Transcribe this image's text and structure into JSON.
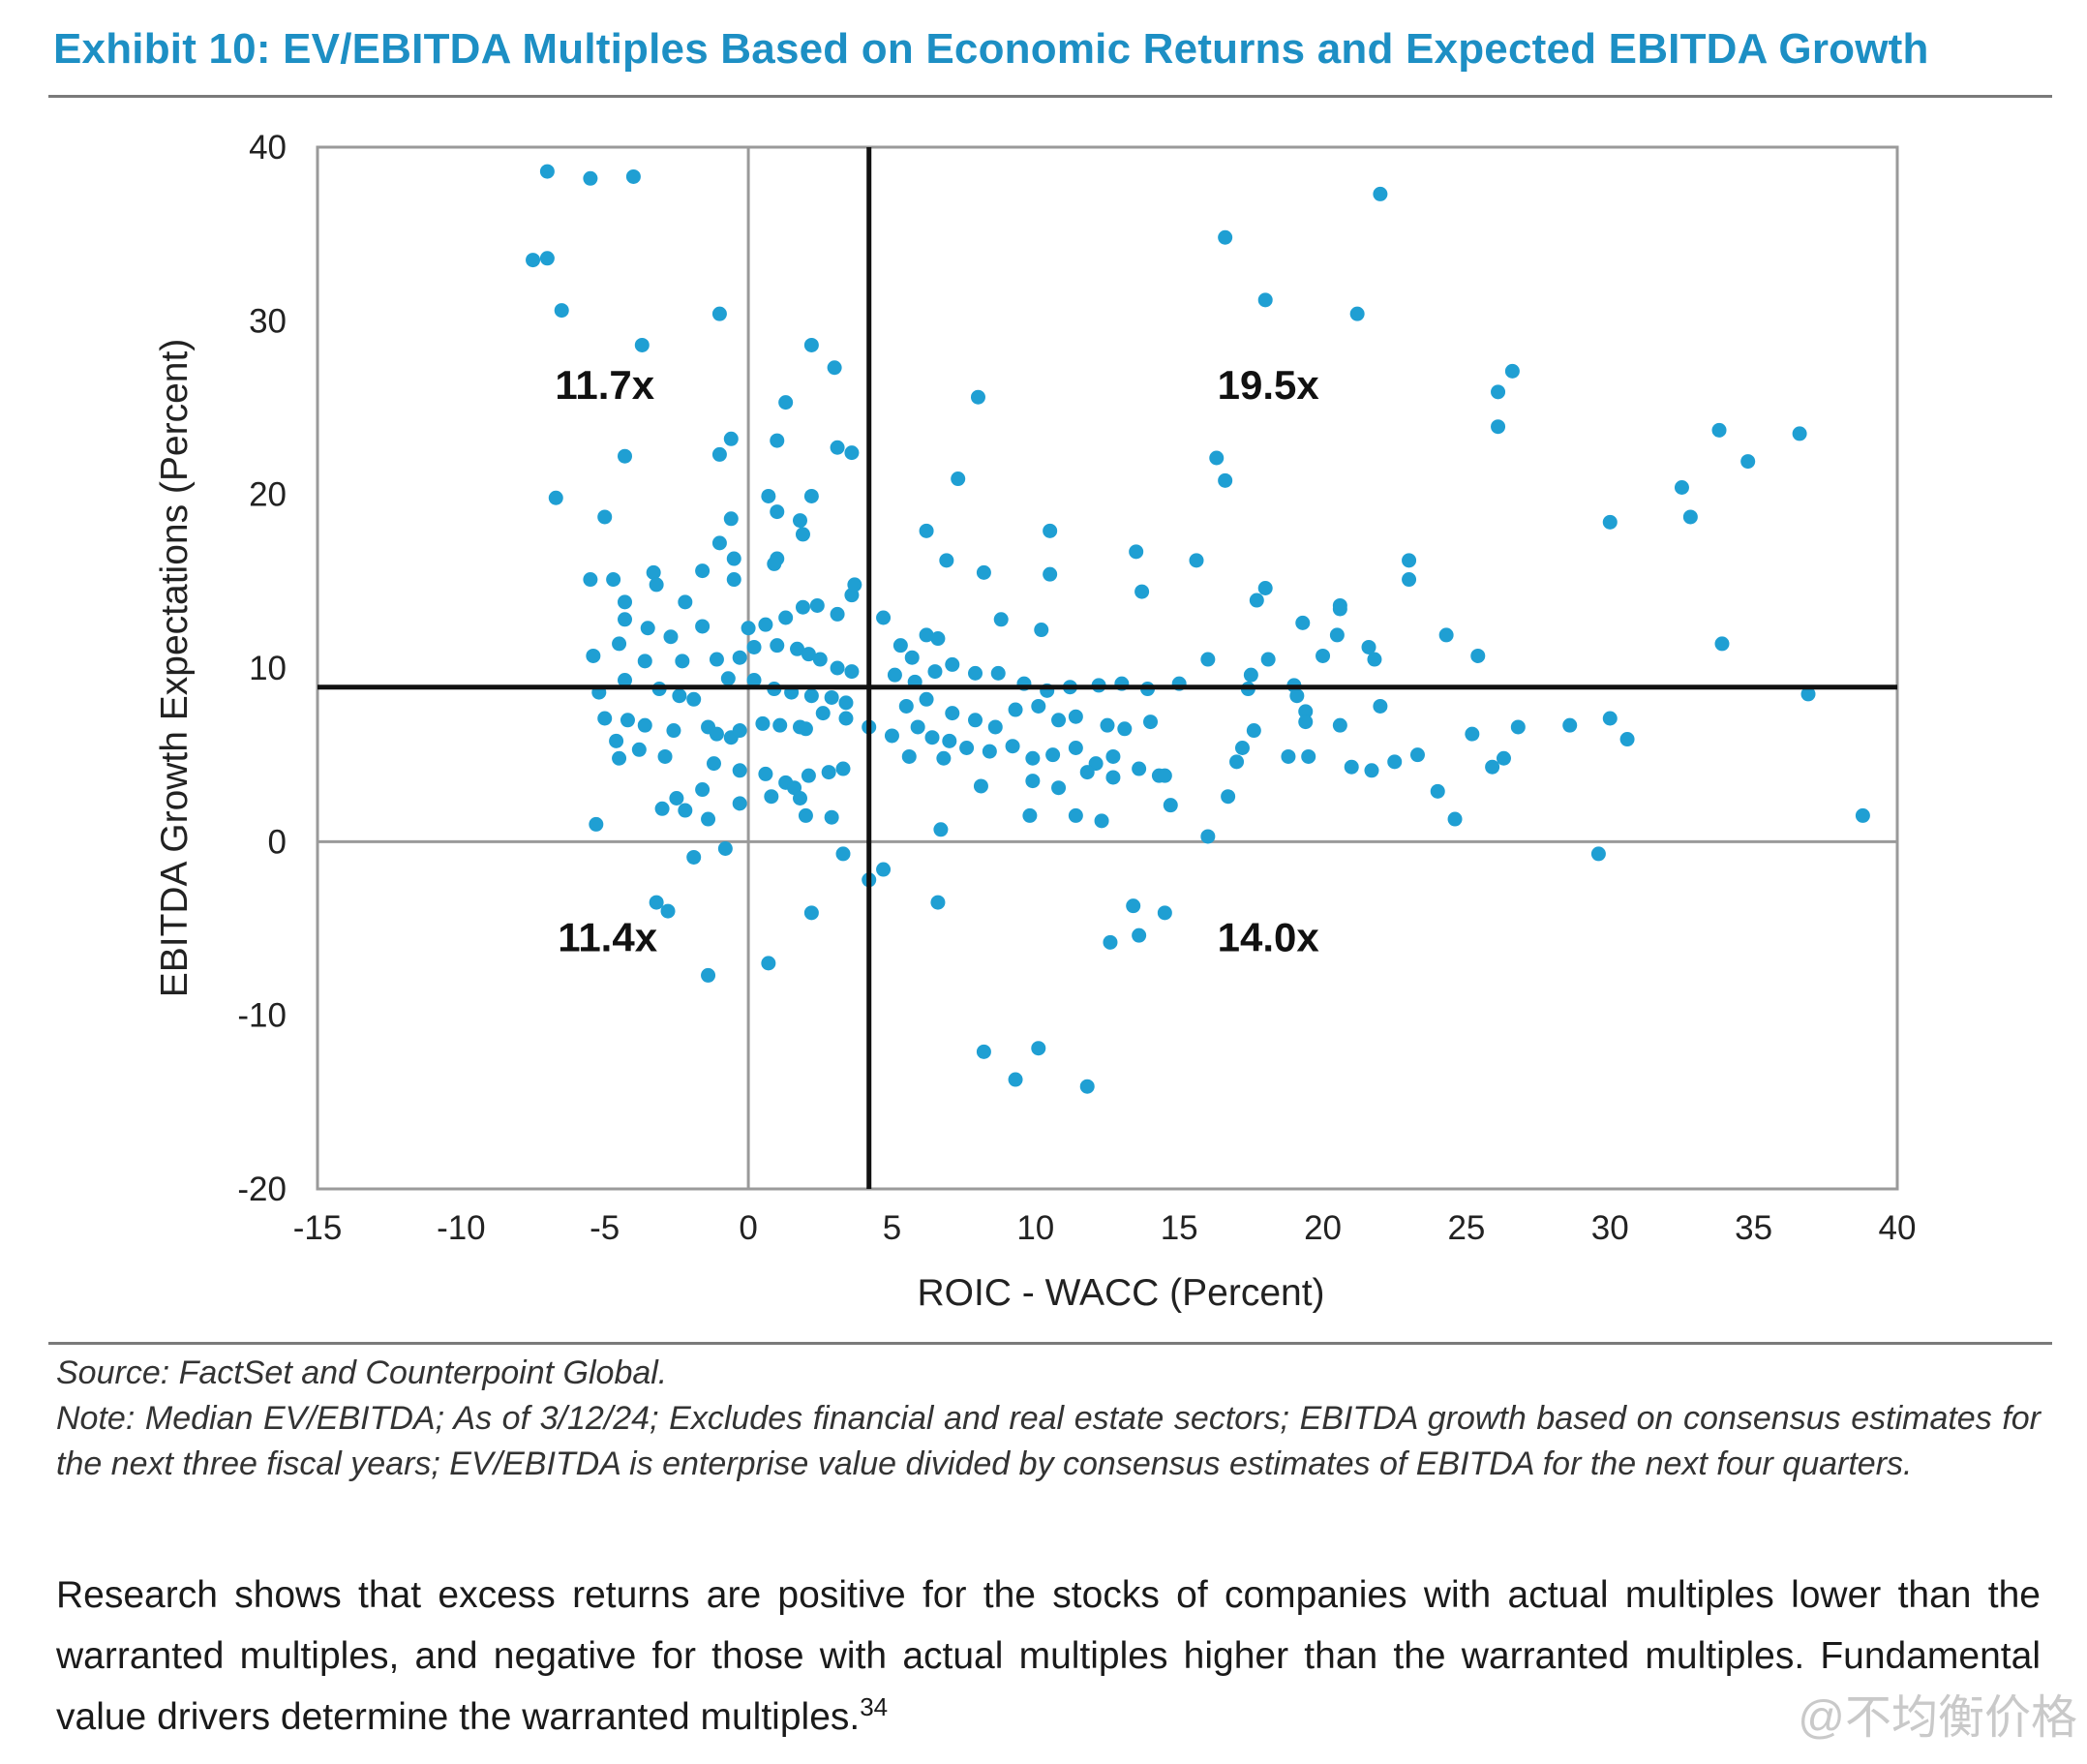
{
  "title": "Exhibit 10: EV/EBITDA Multiples Based on Economic Returns and Expected EBITDA Growth",
  "chart_data": {
    "type": "scatter",
    "xlabel": "ROIC - WACC (Percent)",
    "ylabel": "EBITDA Growth Expectations (Percent)",
    "xlim": [
      -15,
      40
    ],
    "ylim": [
      -20,
      40
    ],
    "xticks": [
      "-15",
      "-10",
      "-5",
      "0",
      "5",
      "10",
      "15",
      "20",
      "25",
      "30",
      "35",
      "40"
    ],
    "yticks": [
      "40",
      "30",
      "20",
      "10",
      "0",
      "-10",
      "-20"
    ],
    "grid": false,
    "median_x": 4.2,
    "median_y": 8.9,
    "quadrant_labels": [
      {
        "text": "11.7x",
        "quadrant": "upper-left"
      },
      {
        "text": "19.5x",
        "quadrant": "upper-right"
      },
      {
        "text": "11.4x",
        "quadrant": "lower-left"
      },
      {
        "text": "14.0x",
        "quadrant": "lower-right"
      }
    ],
    "marker_color": "#1f9fd3",
    "points": [
      [
        -7,
        38.6
      ],
      [
        -5.5,
        38.2
      ],
      [
        -4,
        38.3
      ],
      [
        -7.5,
        33.5
      ],
      [
        -7,
        33.6
      ],
      [
        -6.5,
        30.6
      ],
      [
        -3.7,
        28.6
      ],
      [
        -1,
        30.4
      ],
      [
        2.2,
        28.6
      ],
      [
        3,
        27.3
      ],
      [
        1.3,
        25.3
      ],
      [
        3.1,
        22.7
      ],
      [
        3.6,
        22.4
      ],
      [
        1,
        23.1
      ],
      [
        -0.6,
        23.2
      ],
      [
        -1,
        22.3
      ],
      [
        -4.3,
        22.2
      ],
      [
        -6.7,
        19.8
      ],
      [
        -5,
        18.7
      ],
      [
        -0.6,
        18.6
      ],
      [
        0.7,
        19.9
      ],
      [
        1,
        19.0
      ],
      [
        1.8,
        18.5
      ],
      [
        2.2,
        19.9
      ],
      [
        1.9,
        17.7
      ],
      [
        1.0,
        16.3
      ],
      [
        -1.0,
        17.2
      ],
      [
        -0.5,
        16.3
      ],
      [
        0.9,
        16.0
      ],
      [
        -0.5,
        15.1
      ],
      [
        -1.6,
        15.6
      ],
      [
        -5.5,
        15.1
      ],
      [
        -4.7,
        15.1
      ],
      [
        -3.3,
        15.5
      ],
      [
        -3.2,
        14.8
      ],
      [
        -4.3,
        13.8
      ],
      [
        -2.2,
        13.8
      ],
      [
        -1.6,
        12.4
      ],
      [
        0,
        12.3
      ],
      [
        0.6,
        12.5
      ],
      [
        1.3,
        12.9
      ],
      [
        1.9,
        13.5
      ],
      [
        2.4,
        13.6
      ],
      [
        3.1,
        13.1
      ],
      [
        3.6,
        14.2
      ],
      [
        3.7,
        14.8
      ],
      [
        -4.3,
        12.8
      ],
      [
        -3.5,
        12.3
      ],
      [
        -2.7,
        11.8
      ],
      [
        -4.5,
        11.4
      ],
      [
        -5.4,
        10.7
      ],
      [
        -3.6,
        10.4
      ],
      [
        -2.3,
        10.4
      ],
      [
        -1.1,
        10.5
      ],
      [
        -0.3,
        10.6
      ],
      [
        0.2,
        11.2
      ],
      [
        1,
        11.3
      ],
      [
        1.7,
        11.1
      ],
      [
        2.1,
        10.8
      ],
      [
        2.5,
        10.5
      ],
      [
        3.1,
        10.0
      ],
      [
        3.6,
        9.8
      ],
      [
        -5.2,
        8.6
      ],
      [
        -4.3,
        9.3
      ],
      [
        -3.1,
        8.8
      ],
      [
        -2.4,
        8.4
      ],
      [
        -1.9,
        8.2
      ],
      [
        -0.7,
        9.4
      ],
      [
        0.2,
        9.3
      ],
      [
        0.9,
        8.8
      ],
      [
        1.5,
        8.6
      ],
      [
        2.2,
        8.4
      ],
      [
        2.9,
        8.3
      ],
      [
        3.4,
        8.0
      ],
      [
        -5.0,
        7.1
      ],
      [
        -4.2,
        7.0
      ],
      [
        -3.6,
        6.7
      ],
      [
        -2.6,
        6.4
      ],
      [
        -1.4,
        6.6
      ],
      [
        -1.1,
        6.2
      ],
      [
        -0.6,
        6.0
      ],
      [
        -0.3,
        6.4
      ],
      [
        0.5,
        6.8
      ],
      [
        1.1,
        6.7
      ],
      [
        1.8,
        6.6
      ],
      [
        2.0,
        6.5
      ],
      [
        2.6,
        7.4
      ],
      [
        3.4,
        7.1
      ],
      [
        4.2,
        6.6
      ],
      [
        -4.6,
        5.8
      ],
      [
        -3.8,
        5.3
      ],
      [
        -2.9,
        4.9
      ],
      [
        -4.5,
        4.8
      ],
      [
        -1.2,
        4.5
      ],
      [
        -0.3,
        4.1
      ],
      [
        0.6,
        3.9
      ],
      [
        1.3,
        3.4
      ],
      [
        1.6,
        3.1
      ],
      [
        2.1,
        3.8
      ],
      [
        2.8,
        4.0
      ],
      [
        3.3,
        4.2
      ],
      [
        -1.6,
        3.0
      ],
      [
        -2.5,
        2.5
      ],
      [
        -3.0,
        1.9
      ],
      [
        -2.2,
        1.8
      ],
      [
        -0.3,
        2.2
      ],
      [
        0.8,
        2.6
      ],
      [
        1.8,
        2.5
      ],
      [
        2.0,
        1.5
      ],
      [
        2.9,
        1.4
      ],
      [
        -1.4,
        1.3
      ],
      [
        -5.3,
        1.0
      ],
      [
        -1.9,
        -0.9
      ],
      [
        -0.8,
        -0.4
      ],
      [
        3.3,
        -0.7
      ],
      [
        4.2,
        -2.2
      ],
      [
        4.7,
        -1.6
      ],
      [
        -3.2,
        -3.5
      ],
      [
        -2.8,
        -4.0
      ],
      [
        2.2,
        -4.1
      ],
      [
        -1.4,
        -7.7
      ],
      [
        0.7,
        -7.0
      ],
      [
        4.7,
        12.9
      ],
      [
        5.3,
        11.3
      ],
      [
        5.7,
        10.6
      ],
      [
        6.2,
        11.9
      ],
      [
        6.6,
        11.7
      ],
      [
        7.1,
        10.2
      ],
      [
        7.9,
        9.7
      ],
      [
        8.7,
        9.7
      ],
      [
        9.6,
        9.1
      ],
      [
        10.4,
        8.7
      ],
      [
        11.2,
        8.9
      ],
      [
        12.2,
        9.0
      ],
      [
        13.0,
        9.1
      ],
      [
        13.9,
        8.8
      ],
      [
        5.1,
        9.6
      ],
      [
        5.8,
        9.2
      ],
      [
        6.5,
        9.8
      ],
      [
        5.5,
        7.8
      ],
      [
        6.2,
        8.2
      ],
      [
        7.1,
        7.4
      ],
      [
        7.9,
        7.0
      ],
      [
        8.6,
        6.6
      ],
      [
        9.3,
        7.6
      ],
      [
        10.1,
        7.8
      ],
      [
        10.8,
        7.0
      ],
      [
        11.4,
        7.2
      ],
      [
        12.5,
        6.7
      ],
      [
        13.1,
        6.5
      ],
      [
        14.0,
        6.9
      ],
      [
        5.0,
        6.1
      ],
      [
        5.9,
        6.6
      ],
      [
        6.4,
        6.0
      ],
      [
        7.0,
        5.8
      ],
      [
        7.6,
        5.4
      ],
      [
        8.4,
        5.2
      ],
      [
        9.2,
        5.5
      ],
      [
        9.9,
        4.8
      ],
      [
        10.6,
        5.0
      ],
      [
        11.4,
        5.4
      ],
      [
        12.1,
        4.5
      ],
      [
        12.7,
        4.9
      ],
      [
        13.6,
        4.2
      ],
      [
        14.3,
        3.8
      ],
      [
        5.6,
        4.9
      ],
      [
        6.8,
        4.8
      ],
      [
        8.1,
        3.2
      ],
      [
        9.9,
        3.5
      ],
      [
        10.8,
        3.1
      ],
      [
        11.8,
        4.0
      ],
      [
        12.7,
        3.7
      ],
      [
        14.5,
        3.8
      ],
      [
        9.8,
        1.5
      ],
      [
        11.4,
        1.5
      ],
      [
        12.3,
        1.2
      ],
      [
        14.7,
        2.1
      ],
      [
        16.0,
        0.3
      ],
      [
        6.7,
        0.7
      ],
      [
        6.6,
        -3.5
      ],
      [
        12.6,
        -5.8
      ],
      [
        13.4,
        -3.7
      ],
      [
        13.6,
        -5.4
      ],
      [
        14.5,
        -4.1
      ],
      [
        8.2,
        -12.1
      ],
      [
        9.3,
        -13.7
      ],
      [
        10.1,
        -11.9
      ],
      [
        11.8,
        -14.1
      ],
      [
        8.0,
        25.6
      ],
      [
        7.3,
        20.9
      ],
      [
        8.2,
        15.5
      ],
      [
        10.5,
        17.9
      ],
      [
        10.5,
        15.4
      ],
      [
        6.2,
        17.9
      ],
      [
        6.9,
        16.2
      ],
      [
        8.8,
        12.8
      ],
      [
        10.2,
        12.2
      ],
      [
        13.5,
        16.7
      ],
      [
        13.7,
        14.4
      ],
      [
        15.6,
        16.2
      ],
      [
        16.6,
        34.8
      ],
      [
        18.0,
        31.2
      ],
      [
        21.2,
        30.4
      ],
      [
        22.0,
        37.3
      ],
      [
        16.3,
        22.1
      ],
      [
        16.6,
        20.8
      ],
      [
        18.0,
        14.6
      ],
      [
        17.7,
        13.9
      ],
      [
        19.3,
        12.6
      ],
      [
        20.6,
        13.6
      ],
      [
        20.6,
        13.4
      ],
      [
        21.6,
        11.2
      ],
      [
        23.0,
        15.1
      ],
      [
        23.0,
        16.2
      ],
      [
        24.3,
        11.9
      ],
      [
        25.4,
        10.7
      ],
      [
        20.0,
        10.7
      ],
      [
        20.5,
        11.9
      ],
      [
        21.8,
        10.5
      ],
      [
        16.0,
        10.5
      ],
      [
        15.0,
        9.1
      ],
      [
        17.4,
        8.8
      ],
      [
        17.5,
        9.6
      ],
      [
        18.1,
        10.5
      ],
      [
        19.0,
        9.0
      ],
      [
        19.1,
        8.4
      ],
      [
        22.0,
        7.8
      ],
      [
        19.4,
        7.5
      ],
      [
        19.4,
        6.9
      ],
      [
        20.6,
        6.7
      ],
      [
        17.6,
        6.4
      ],
      [
        17.2,
        5.4
      ],
      [
        18.8,
        4.9
      ],
      [
        19.5,
        4.9
      ],
      [
        21.0,
        4.3
      ],
      [
        21.7,
        4.1
      ],
      [
        22.5,
        4.6
      ],
      [
        23.3,
        5.0
      ],
      [
        17.0,
        4.6
      ],
      [
        16.7,
        2.6
      ],
      [
        25.2,
        6.2
      ],
      [
        26.8,
        6.6
      ],
      [
        26.3,
        4.8
      ],
      [
        25.9,
        4.3
      ],
      [
        28.6,
        6.7
      ],
      [
        30.0,
        7.1
      ],
      [
        30.6,
        5.9
      ],
      [
        24.0,
        2.9
      ],
      [
        24.6,
        1.3
      ],
      [
        29.6,
        -0.7
      ],
      [
        26.1,
        25.9
      ],
      [
        26.1,
        23.9
      ],
      [
        26.6,
        27.1
      ],
      [
        30.0,
        18.4
      ],
      [
        32.5,
        20.4
      ],
      [
        32.8,
        18.7
      ],
      [
        33.8,
        23.7
      ],
      [
        34.8,
        21.9
      ],
      [
        36.6,
        23.5
      ],
      [
        33.9,
        11.4
      ],
      [
        36.9,
        8.5
      ],
      [
        38.8,
        1.5
      ]
    ]
  },
  "source_note": "Source: FactSet and Counterpoint Global.",
  "note_text": "Note: Median EV/EBITDA; As of 3/12/24; Excludes financial and real estate sectors; EBITDA growth based on consensus estimates for the next three fiscal years; EV/EBITDA is enterprise value divided by consensus estimates of EBITDA for the next four quarters.",
  "body_text": "Research shows that excess returns are positive for the stocks of companies with actual multiples lower than the warranted multiples, and negative for those with actual multiples higher than the warranted multiples. Fundamental value drivers determine the warranted multiples.",
  "footnote_ref": "34",
  "watermark": "@不均衡价格"
}
